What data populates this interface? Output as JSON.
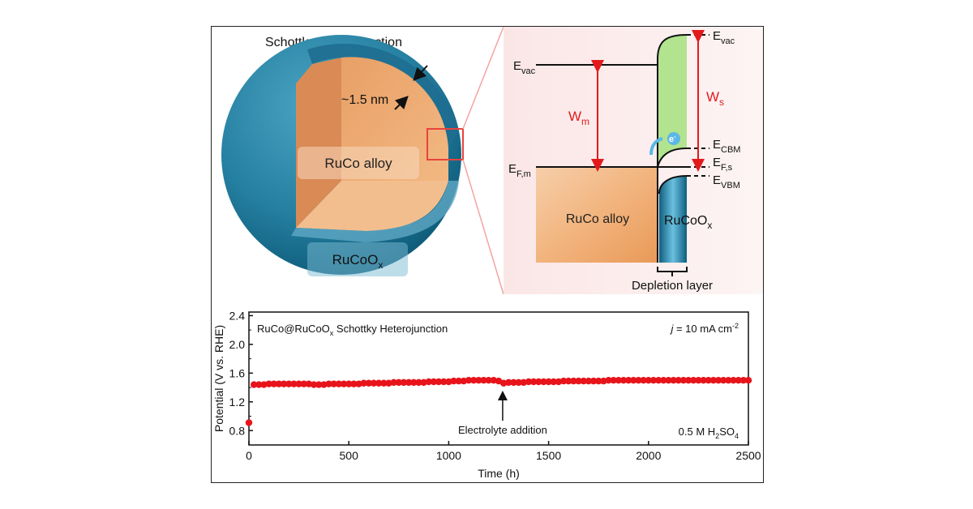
{
  "top_left": {
    "title": "Schottky Heterojunction",
    "thickness_label": "~1.5 nm",
    "core_label": "RuCo alloy",
    "shell_label_main": "RuCoO",
    "shell_label_sub": "x"
  },
  "band_diagram": {
    "evac_left_main": "E",
    "evac_left_sub": "vac",
    "evac_right_main": "E",
    "evac_right_sub": "vac",
    "wm_main": "W",
    "wm_sub": "m",
    "ws_main": "W",
    "ws_sub": "s",
    "electron_main": "e",
    "electron_sup": "-",
    "ecbm_main": "E",
    "ecbm_sub": "CBM",
    "efs_main": "E",
    "efs_sub": "F,s",
    "evbm_main": "E",
    "evbm_sub": "VBM",
    "efm_main": "E",
    "efm_sub": "F,m",
    "metal_label": "RuCo alloy",
    "semi_label_main": "RuCoO",
    "semi_label_sub": "x",
    "depletion_label": "Depletion layer"
  },
  "chart_data": {
    "type": "scatter",
    "title_main": "RuCo@RuCoO",
    "title_sub": "x",
    "title_rest": " Schottky Heterojunction",
    "current_label_italic": "j",
    "current_label_rest": " = 10 mA cm",
    "current_label_sup": "-2",
    "electrolyte_main": "0.5 M H",
    "electrolyte_sub1": "2",
    "electrolyte_mid": "SO",
    "electrolyte_sub2": "4",
    "annotation": "Electrolyte addition",
    "annotation_x": 1270,
    "xlabel": "Time (h)",
    "ylabel": "Potential (V vs. RHE)",
    "xlim": [
      0,
      2500
    ],
    "ylim": [
      0.6,
      2.45
    ],
    "xticks": [
      0,
      500,
      1000,
      1500,
      2000,
      2500
    ],
    "yticks": [
      0.8,
      1.2,
      1.6,
      2.0,
      2.4
    ],
    "yticks_minor": [
      1.0,
      1.4,
      1.8,
      2.2
    ],
    "grid": false,
    "marker_color": "#e8141b",
    "series": [
      {
        "x": [
          0,
          25,
          50,
          75,
          100,
          125,
          150,
          175,
          200,
          225,
          250,
          275,
          300,
          325,
          350,
          375,
          400,
          425,
          450,
          475,
          500,
          525,
          550,
          575,
          600,
          625,
          650,
          675,
          700,
          725,
          750,
          775,
          800,
          825,
          850,
          875,
          900,
          925,
          950,
          975,
          1000,
          1025,
          1050,
          1075,
          1100,
          1125,
          1150,
          1175,
          1200,
          1225,
          1250,
          1275,
          1300,
          1325,
          1350,
          1375,
          1400,
          1425,
          1450,
          1475,
          1500,
          1525,
          1550,
          1575,
          1600,
          1625,
          1650,
          1675,
          1700,
          1725,
          1750,
          1775,
          1800,
          1825,
          1850,
          1875,
          1900,
          1925,
          1950,
          1975,
          2000,
          2025,
          2050,
          2075,
          2100,
          2125,
          2150,
          2175,
          2200,
          2225,
          2250,
          2275,
          2300,
          2325,
          2350,
          2375,
          2400,
          2425,
          2450,
          2475,
          2500
        ],
        "y": [
          0.91,
          1.44,
          1.44,
          1.44,
          1.45,
          1.45,
          1.45,
          1.45,
          1.45,
          1.45,
          1.45,
          1.45,
          1.45,
          1.44,
          1.44,
          1.44,
          1.45,
          1.45,
          1.45,
          1.45,
          1.45,
          1.45,
          1.45,
          1.46,
          1.46,
          1.46,
          1.46,
          1.46,
          1.46,
          1.47,
          1.47,
          1.47,
          1.47,
          1.47,
          1.47,
          1.47,
          1.48,
          1.48,
          1.48,
          1.48,
          1.48,
          1.49,
          1.49,
          1.49,
          1.5,
          1.5,
          1.5,
          1.5,
          1.5,
          1.5,
          1.49,
          1.46,
          1.47,
          1.47,
          1.47,
          1.47,
          1.48,
          1.48,
          1.48,
          1.48,
          1.48,
          1.48,
          1.48,
          1.49,
          1.49,
          1.49,
          1.49,
          1.49,
          1.49,
          1.49,
          1.49,
          1.49,
          1.5,
          1.5,
          1.5,
          1.5,
          1.5,
          1.5,
          1.5,
          1.5,
          1.5,
          1.5,
          1.5,
          1.5,
          1.5,
          1.5,
          1.5,
          1.5,
          1.5,
          1.5,
          1.5,
          1.5,
          1.5,
          1.5,
          1.5,
          1.5,
          1.5,
          1.5,
          1.5,
          1.5,
          1.5
        ]
      }
    ]
  }
}
